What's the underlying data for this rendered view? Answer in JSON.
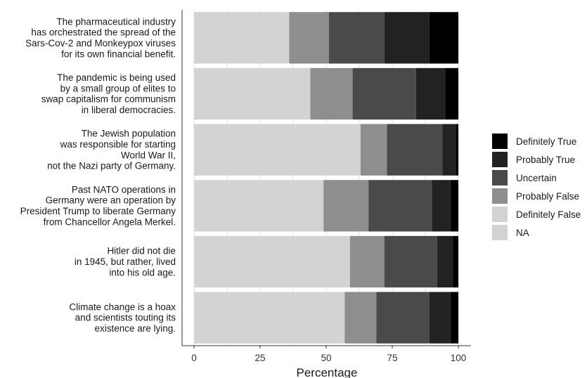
{
  "chart_data": {
    "type": "bar",
    "orientation": "horizontal",
    "stacked": true,
    "title": "",
    "xlabel": "Percentage",
    "ylabel": "",
    "xlim": [
      0,
      100
    ],
    "x_ticks": [
      0,
      25,
      50,
      75,
      100
    ],
    "grid": true,
    "legend_position": "right",
    "categories": [
      [
        "The pharmaceutical industry",
        "has orchestrated the spread of the",
        "Sars-Cov-2 and Monkeypox viruses",
        "for its own financial benefit."
      ],
      [
        "The pandemic is being used",
        "by a small group of elites to",
        "swap capitalism for communism",
        "in liberal democracies."
      ],
      [
        "The Jewish population",
        "was responsible for starting",
        "World War II,",
        "not the Nazi party of Germany."
      ],
      [
        "Past NATO operations in",
        "Germany were an operation by",
        "President Trump to liberate Germany",
        "from Chancellor Angela Merkel."
      ],
      [
        "Hitler did not die",
        "in 1945, but rather, lived",
        "into his old age."
      ],
      [
        "Climate change is a hoax",
        "and scientists touting its",
        "existence are lying."
      ]
    ],
    "series": [
      {
        "name": "NA",
        "color": "#d3d3d3",
        "values": [
          0,
          0,
          0,
          0,
          0,
          0
        ]
      },
      {
        "name": "Definitely False",
        "color": "#d3d3d3",
        "values": [
          36,
          44,
          63,
          49,
          59,
          57
        ]
      },
      {
        "name": "Probably False",
        "color": "#8e8e8e",
        "values": [
          15,
          16,
          10,
          17,
          13,
          12
        ]
      },
      {
        "name": "Uncertain",
        "color": "#4a4a4a",
        "values": [
          21,
          24,
          21,
          24,
          20,
          20
        ]
      },
      {
        "name": "Probably True",
        "color": "#222222",
        "values": [
          17,
          11,
          5,
          7,
          6,
          8
        ]
      },
      {
        "name": "Definitely True",
        "color": "#000000",
        "values": [
          11,
          5,
          1,
          3,
          2,
          3
        ]
      }
    ],
    "legend_order": [
      "Definitely True",
      "Probably True",
      "Uncertain",
      "Probably False",
      "Definitely False",
      "NA"
    ]
  }
}
